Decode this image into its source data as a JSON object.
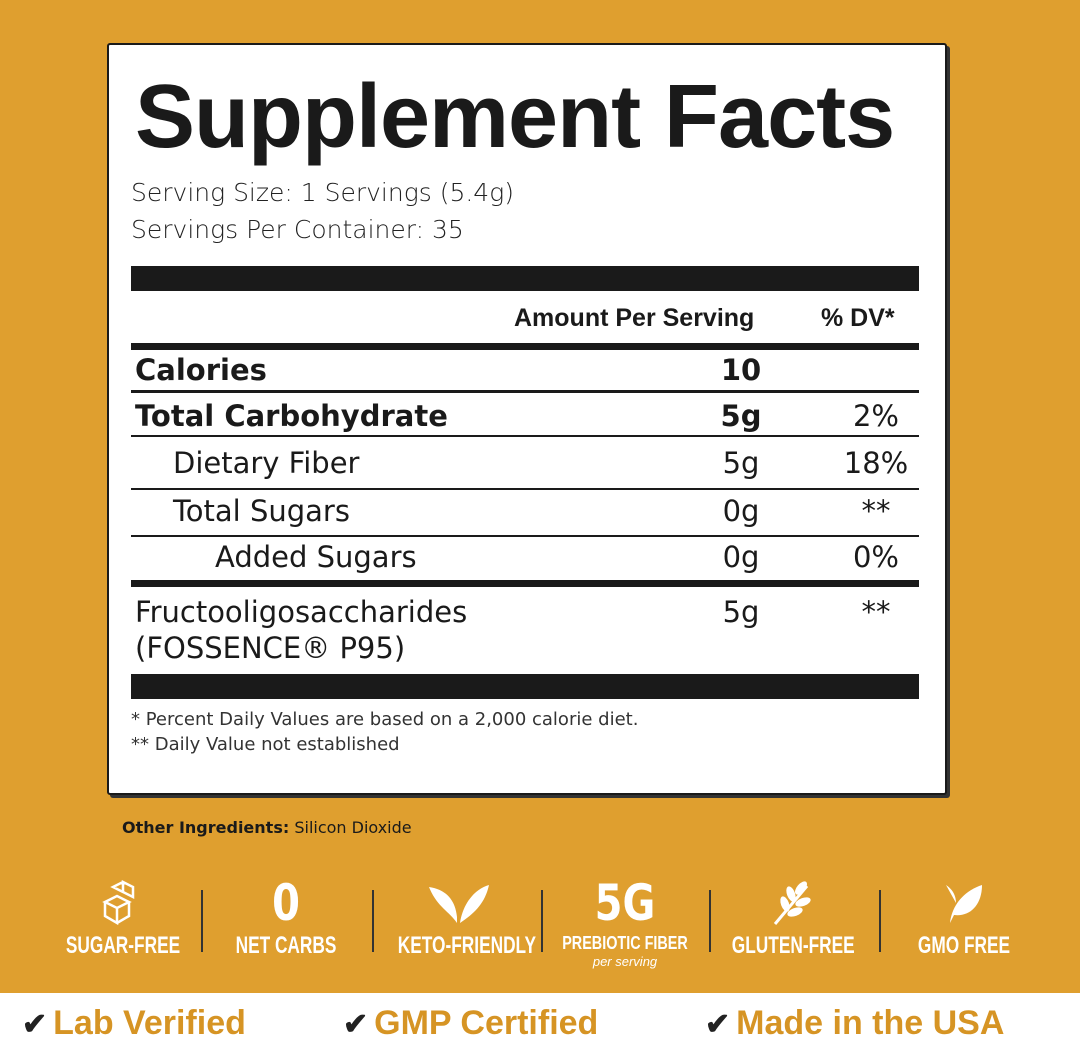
{
  "title": "Supplement Facts",
  "serving_size": "Serving Size: 1 Servings (5.4g)",
  "servings_per_container": "Servings Per Container: 35",
  "header": {
    "amount": "Amount Per Serving",
    "dv": "% DV*"
  },
  "rows": [
    {
      "name": "Calories",
      "amount": "10",
      "dv": ""
    },
    {
      "name": "Total Carbohydrate",
      "amount": "5g",
      "dv": "2%"
    },
    {
      "name": "Dietary Fiber",
      "amount": "5g",
      "dv": "18%"
    },
    {
      "name": "Total Sugars",
      "amount": "0g",
      "dv": "**"
    },
    {
      "name": "Added Sugars",
      "amount": "0g",
      "dv": "0%"
    },
    {
      "name": "Fructooligosaccharides",
      "name2": "(FOSSENCE® P95)",
      "amount": "5g",
      "dv": "**"
    }
  ],
  "footnotes": [
    "* Percent Daily Values are based on a 2,000 calorie diet.",
    "** Daily Value not established"
  ],
  "other_ingredients": {
    "label": "Other Ingredients:",
    "value": " Silicon Dioxide"
  },
  "features": [
    {
      "icon": "sugar-cubes-icon",
      "label": "SUGAR-FREE"
    },
    {
      "big": "0",
      "label": "NET CARBS"
    },
    {
      "icon": "leaf-sprout-icon",
      "label": "KETO-FRIENDLY"
    },
    {
      "big": "5G",
      "label": "PREBIOTIC FIBER",
      "sub": "per serving"
    },
    {
      "icon": "wheat-icon",
      "label": "GLUTEN-FREE"
    },
    {
      "icon": "leaf-icon",
      "label": "GMO FREE"
    }
  ],
  "certifications": [
    "Lab Verified",
    "GMP Certified",
    "Made in the USA"
  ],
  "colors": {
    "background": "#DF9F2F",
    "accent_text": "#D69424"
  }
}
